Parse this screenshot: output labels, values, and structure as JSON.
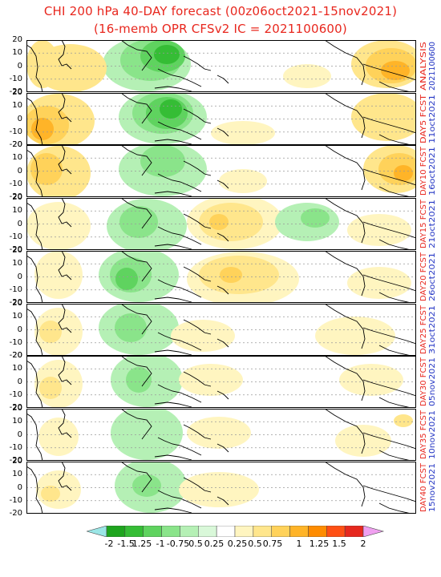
{
  "title": {
    "line1": "CHI 200 hPa 40-DAY forecast (00z06oct2021-15nov2021)",
    "line2": "(16-memb OPR CFSv2 IC = 2021100600)"
  },
  "y_tick_labels": [
    "20",
    "10",
    "0",
    "-10",
    "-20"
  ],
  "panels": [
    {
      "label": "ANALYSIS",
      "date": "2021100600"
    },
    {
      "label": "DAY5 FCST",
      "date": "11oct2021"
    },
    {
      "label": "DAY10 FCST",
      "date": "16oct2021"
    },
    {
      "label": "DAY15 FCST",
      "date": "21oct2021"
    },
    {
      "label": "DAY20 FCST",
      "date": "26oct2021"
    },
    {
      "label": "DAY25 FCST",
      "date": "31oct2021"
    },
    {
      "label": "DAY30 FCST",
      "date": "05nov2021"
    },
    {
      "label": "DAY35 FCST",
      "date": "10nov2021"
    },
    {
      "label": "DAY40 FCST",
      "date": "15nov2021"
    }
  ],
  "colorbar": {
    "labels": [
      "-2",
      "-1.5",
      "1.25",
      "-1",
      "-0.75",
      "0.5",
      "0.25",
      "0.25",
      "0.5",
      "0.75",
      "1",
      "1.25",
      "1.5",
      "2"
    ],
    "colors": [
      "#9be6e6",
      "#1ea51e",
      "#35bd35",
      "#5fd35f",
      "#8ae48a",
      "#b5f0b5",
      "#d9f8d9",
      "#ffffff",
      "#fff5c0",
      "#ffe68c",
      "#ffd25a",
      "#ffb428",
      "#ff8c00",
      "#ff5014",
      "#e6281e",
      "#f0a0f0"
    ]
  },
  "colors": {
    "title": "#e8271e",
    "panel_label": "#e8271e",
    "panel_date": "#2436c4"
  }
}
